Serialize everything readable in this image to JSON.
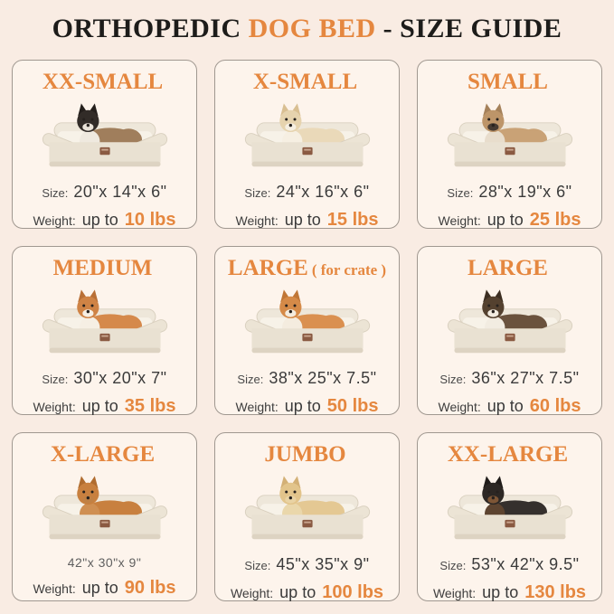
{
  "page": {
    "title_part1": "ORTHOPEDIC ",
    "title_accent": "DOG BED",
    "title_part2": " - SIZE GUIDE",
    "background": "#f9ece3",
    "accent_color": "#e5873f",
    "cell_background": "#fdf4ec",
    "cell_border": "#a09890"
  },
  "cells": [
    {
      "name": "XX-SMALL",
      "name_suffix": "",
      "size_label": "Size:",
      "size_value": "20\"x 14\"x 6\"",
      "size_small": false,
      "weight_label": "Weight:",
      "weight_prefix": "up to",
      "weight_value": "10 lbs",
      "animal": "cat",
      "art": {
        "fur": "#a07e5c",
        "head": "#322c28",
        "ear": "#241f1c",
        "muzzle": "#e9e2d8",
        "chest": "#efe9df"
      }
    },
    {
      "name": "X-SMALL",
      "name_suffix": "",
      "size_label": "Size:",
      "size_value": "24\"x 16\"x 6\"",
      "size_small": false,
      "weight_label": "Weight:",
      "weight_prefix": "up to",
      "weight_value": "15 lbs",
      "animal": "small-fluffy-dog",
      "art": {
        "fur": "#ead9b9",
        "head": "#e6d3ae",
        "ear": "#d9bf92",
        "muzzle": "#f6efe2",
        "chest": "#f6efe2"
      }
    },
    {
      "name": "SMALL",
      "name_suffix": "",
      "size_label": "Size:",
      "size_value": "28\"x 19\"x 6\"",
      "size_small": false,
      "weight_label": "Weight:",
      "weight_prefix": "up to",
      "weight_value": "25 lbs",
      "animal": "french-bulldog",
      "art": {
        "fur": "#c9a276",
        "head": "#bd9569",
        "ear": "#a5815a",
        "muzzle": "#453a32",
        "chest": "#e8ddcc"
      }
    },
    {
      "name": "MEDIUM",
      "name_suffix": "",
      "size_label": "Size:",
      "size_value": "30\"x 20\"x 7\"",
      "size_small": false,
      "weight_label": "Weight:",
      "weight_prefix": "up to",
      "weight_value": "35 lbs",
      "animal": "corgi",
      "art": {
        "fur": "#d5894b",
        "head": "#cf8345",
        "ear": "#b96f35",
        "muzzle": "#f6efe4",
        "chest": "#f6efe4"
      }
    },
    {
      "name": "LARGE",
      "name_suffix": "( for crate )",
      "size_label": "Size:",
      "size_value": "38\"x 25\"x 7.5\"",
      "size_small": false,
      "weight_label": "Weight:",
      "weight_prefix": "up to",
      "weight_value": "50 lbs",
      "animal": "shiba-inu",
      "art": {
        "fur": "#da9050",
        "head": "#d58a48",
        "ear": "#c07636",
        "muzzle": "#f4ecdf",
        "chest": "#f4ecdf"
      }
    },
    {
      "name": "LARGE",
      "name_suffix": "",
      "size_label": "Size:",
      "size_value": "36\"x 27\"x 7.5\"",
      "size_small": false,
      "weight_label": "Weight:",
      "weight_prefix": "up to",
      "weight_value": "60 lbs",
      "animal": "border-collie",
      "art": {
        "fur": "#6a523d",
        "head": "#54412f",
        "ear": "#3c2e21",
        "muzzle": "#f2ece1",
        "chest": "#f2ece1"
      }
    },
    {
      "name": "X-LARGE",
      "name_suffix": "",
      "size_label": "",
      "size_value": "42\"x 30\"x 9\"",
      "size_small": true,
      "weight_label": "Weight:",
      "weight_prefix": "up to",
      "weight_value": "90 lbs",
      "animal": "golden-retriever",
      "art": {
        "fur": "#c8803f",
        "head": "#c8803f",
        "ear": "#b06c2f",
        "muzzle": "#c08145",
        "chest": "#cf8f52"
      }
    },
    {
      "name": "JUMBO",
      "name_suffix": "",
      "size_label": "Size:",
      "size_value": "45\"x 35\"x 9\"",
      "size_small": false,
      "weight_label": "Weight:",
      "weight_prefix": "up to",
      "weight_value": "100 lbs",
      "animal": "yellow-labrador",
      "art": {
        "fur": "#e4c893",
        "head": "#e2c48b",
        "ear": "#d3b076",
        "muzzle": "#e9d3a4",
        "chest": "#ead7ab"
      }
    },
    {
      "name": "XX-LARGE",
      "name_suffix": "",
      "size_label": "Size:",
      "size_value": "53\"x 42\"x 9.5\"",
      "size_small": false,
      "weight_label": "Weight:",
      "weight_prefix": "up to",
      "weight_value": "130 lbs",
      "animal": "rottweiler",
      "art": {
        "fur": "#35302d",
        "head": "#2c2724",
        "ear": "#201c1a",
        "muzzle": "#7e5636",
        "chest": "#5d4430"
      }
    }
  ]
}
